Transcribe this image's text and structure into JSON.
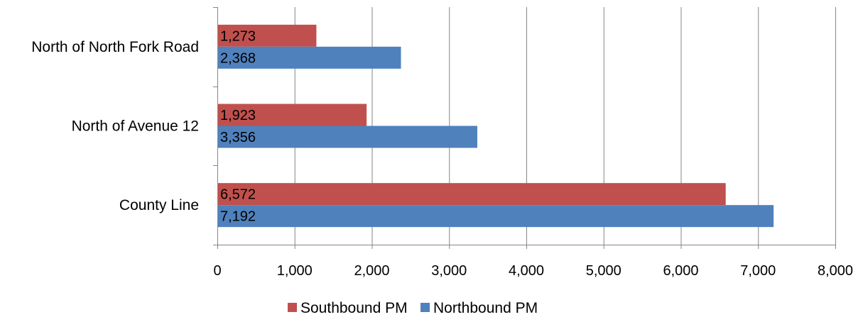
{
  "chart_data": {
    "type": "bar",
    "orientation": "horizontal",
    "categories": [
      "North of North Fork Road",
      "North of Avenue 12",
      "County Line"
    ],
    "series": [
      {
        "name": "Southbound PM",
        "color": "#C0504D",
        "values": [
          1273,
          1923,
          6572
        ],
        "labels": [
          "1,273",
          "1,923",
          "6,572"
        ]
      },
      {
        "name": "Northbound PM",
        "color": "#4F81BD",
        "values": [
          2368,
          3356,
          7192
        ],
        "labels": [
          "2,368",
          "3,356",
          "7,192"
        ]
      }
    ],
    "xlim": [
      0,
      8000
    ],
    "x_ticks": [
      0,
      1000,
      2000,
      3000,
      4000,
      5000,
      6000,
      7000,
      8000
    ],
    "x_tick_labels": [
      "0",
      "1,000",
      "2,000",
      "3,000",
      "4,000",
      "5,000",
      "6,000",
      "7,000",
      "8,000"
    ],
    "grid": "vertical",
    "grid_color": "#868686",
    "legend_position": "bottom"
  }
}
